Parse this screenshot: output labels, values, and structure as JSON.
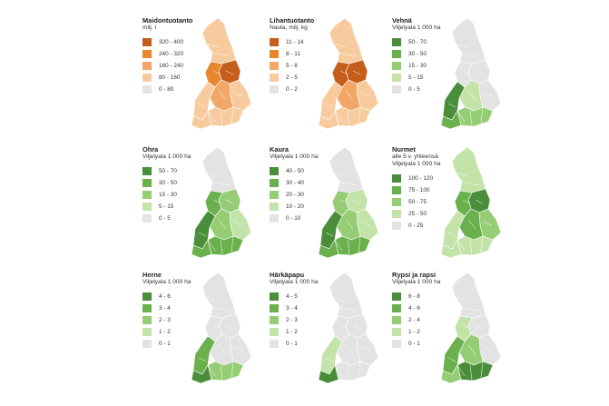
{
  "colors": {
    "none": "#e3e3e3",
    "orange": [
      "#c45e1a",
      "#e8862e",
      "#f2a766",
      "#f7cb9e",
      "#e3e3e3"
    ],
    "green": [
      "#4a8d3a",
      "#6ab04c",
      "#95cd75",
      "#c3e3a9",
      "#e3e3e3"
    ]
  },
  "panels": [
    {
      "id": "maidontuotanto",
      "title": "Maidontuotanto",
      "subtitle": [
        "milj. l"
      ],
      "palette": "orange",
      "legend": [
        "320 - 400",
        "240 - 320",
        "160 - 240",
        "80 - 160",
        "0 - 80"
      ],
      "map": {
        "lapland": 3,
        "north": 0,
        "northwest": 1,
        "east": 3,
        "center": 2,
        "southwest": 3,
        "south": 3,
        "coast": 3
      }
    },
    {
      "id": "lihantuotanto",
      "title": "Lihantuotanto",
      "subtitle": [
        "Nauta, milj. kg"
      ],
      "palette": "orange",
      "legend": [
        "11 - 14",
        "8 - 11",
        "5 - 8",
        "2 - 5",
        "0 - 2"
      ],
      "map": {
        "lapland": 3,
        "north": 0,
        "northwest": 0,
        "east": 3,
        "center": 2,
        "southwest": 3,
        "south": 3,
        "coast": 3
      }
    },
    {
      "id": "vehna",
      "title": "Vehnä",
      "subtitle": [
        "Viljelyala 1 000 ha"
      ],
      "palette": "green",
      "legend": [
        "50 - 70",
        "30 - 50",
        "15 - 30",
        "5 - 15",
        "0 - 5"
      ],
      "map": {
        "lapland": 4,
        "north": 4,
        "northwest": 4,
        "east": 4,
        "center": 3,
        "southwest": 0,
        "south": 2,
        "coast": 1
      }
    },
    {
      "id": "ohra",
      "title": "Ohra",
      "subtitle": [
        "Viljelyala 1 000 ha"
      ],
      "palette": "green",
      "legend": [
        "50 - 70",
        "30 - 50",
        "15 - 30",
        "5 - 15",
        "0 - 5"
      ],
      "map": {
        "lapland": 4,
        "north": 2,
        "northwest": 1,
        "east": 3,
        "center": 2,
        "southwest": 0,
        "south": 1,
        "coast": 1
      }
    },
    {
      "id": "kaura",
      "title": "Kaura",
      "subtitle": [
        "Viljelyala 1 000 ha"
      ],
      "palette": "green",
      "legend": [
        "40 - 50",
        "30 - 40",
        "20 - 30",
        "10 - 20",
        "0 - 10"
      ],
      "map": {
        "lapland": 4,
        "north": 3,
        "northwest": 2,
        "east": 3,
        "center": 2,
        "southwest": 0,
        "south": 1,
        "coast": 1
      }
    },
    {
      "id": "nurmet",
      "title": "Nurmet",
      "subtitle": [
        "alle 5 v. yhteensä",
        "Viljelyala 1 000 ha"
      ],
      "palette": "green",
      "legend": [
        "100 - 120",
        "75 - 100",
        "50 - 75",
        "25 - 50",
        "0 - 25"
      ],
      "map": {
        "lapland": 3,
        "north": 0,
        "northwest": 1,
        "east": 2,
        "center": 1,
        "southwest": 3,
        "south": 3,
        "coast": 3
      }
    },
    {
      "id": "herne",
      "title": "Herne",
      "subtitle": [
        "Viljelyala 1 000 ha"
      ],
      "palette": "green",
      "legend": [
        "4 - 6",
        "3 - 4",
        "2 - 3",
        "1 - 2",
        "0 - 1"
      ],
      "map": {
        "lapland": 4,
        "north": 4,
        "northwest": 4,
        "east": 4,
        "center": 4,
        "southwest": 1,
        "south": 2,
        "coast": 0
      }
    },
    {
      "id": "harkapapu",
      "title": "Härkäpapu",
      "subtitle": [
        "Viljelyala 1 000 ha"
      ],
      "palette": "green",
      "legend": [
        "4 - 5",
        "3 - 4",
        "2 - 3",
        "1 - 2",
        "0 - 1"
      ],
      "map": {
        "lapland": 4,
        "north": 4,
        "northwest": 4,
        "east": 4,
        "center": 4,
        "southwest": 3,
        "south": 4,
        "coast": 0
      }
    },
    {
      "id": "rypsi",
      "title": "Rypsi ja rapsi",
      "subtitle": [
        "Viljelyala 1 000 ha"
      ],
      "palette": "green",
      "legend": [
        "6 - 8",
        "4 - 6",
        "2 - 4",
        "1 - 2",
        "0 - 1"
      ],
      "map": {
        "lapland": 4,
        "north": 4,
        "northwest": 3,
        "east": 4,
        "center": 2,
        "southwest": 1,
        "south": 0,
        "coast": 2
      }
    }
  ]
}
